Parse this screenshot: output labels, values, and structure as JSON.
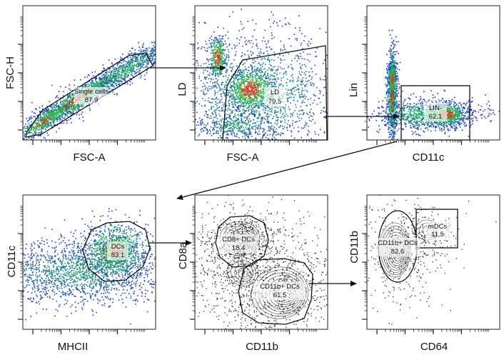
{
  "colors": {
    "density_low": "#1f2bdc",
    "density_mid": "#21c94a",
    "density_high": "#e82a1a",
    "contour": "#111111",
    "gate": "#111111",
    "arrow": "#111111"
  },
  "chart_data": [
    {
      "type": "scatter",
      "style": "pseudocolor",
      "xlabel": "FSC-A",
      "ylabel": "FSC-H",
      "gates": [
        {
          "name": "Single cells",
          "value": "87.9"
        }
      ]
    },
    {
      "type": "scatter",
      "style": "pseudocolor",
      "xlabel": "FSC-A",
      "ylabel": "LD",
      "gates": [
        {
          "name": "LD",
          "value": "79.5"
        }
      ]
    },
    {
      "type": "scatter",
      "style": "pseudocolor",
      "xlabel": "CD11c",
      "ylabel": "Lin",
      "gates": [
        {
          "name": "LIN-",
          "value": "62.1"
        }
      ]
    },
    {
      "type": "scatter",
      "style": "pseudocolor",
      "xlabel": "MHCII",
      "ylabel": "CD11c",
      "gates": [
        {
          "name": "DCs",
          "value": "83.1"
        }
      ]
    },
    {
      "type": "scatter",
      "style": "contour",
      "xlabel": "CD11b",
      "ylabel": "CD8a",
      "gates": [
        {
          "name": "CD8+ DCs",
          "value": "18.4"
        },
        {
          "name": "CD11b+ DCs",
          "value": "61.5"
        }
      ]
    },
    {
      "type": "scatter",
      "style": "contour",
      "xlabel": "CD64",
      "ylabel": "CD11b",
      "gates": [
        {
          "name": "CD11b+ DCs",
          "value": "82.6"
        },
        {
          "name": "mDCs",
          "value": "11.5"
        }
      ]
    }
  ]
}
